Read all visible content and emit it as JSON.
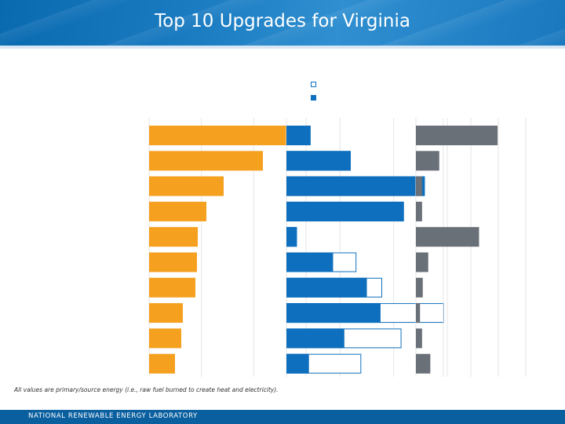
{
  "slide": {
    "title": "Top 10 Upgrades for Virginia",
    "footnote": "All values are primary/source energy (i.e., raw fuel burned to create heat and electricity).",
    "footer": "NATIONAL RENEWABLE ENERGY LABORATORY"
  },
  "colors": {
    "orange": "#f5a01f",
    "blue": "#0d6fbd",
    "gray": "#6a7078",
    "grid": "#e6e6e6",
    "header": "#1b7cc2",
    "footer": "#0a5f9f"
  },
  "chart_data": {
    "type": "bar",
    "orientation": "horizontal",
    "categories": [
      "",
      "",
      "",
      "",
      "",
      "",
      "",
      "",
      "",
      ""
    ],
    "axis_labels_visible": false,
    "grid": true,
    "panels": [
      {
        "color_key": "orange",
        "grid_lines": 3,
        "max": 200,
        "series": [
          {
            "style": "solid",
            "values": [
              178,
              145,
              95,
              73,
              62,
              61,
              59,
              43,
              41,
              33
            ]
          }
        ]
      },
      {
        "color_key": "blue",
        "grid_lines": 3,
        "max": 200,
        "series": [
          {
            "style": "solid",
            "values": [
              30,
              80,
              172,
              146,
              13,
              58,
              100,
              117,
              72,
              28
            ]
          },
          {
            "style": "hollow",
            "values": [
              30,
              80,
              172,
              146,
              13,
              87,
              119,
              196,
              143,
              93
            ]
          }
        ]
      },
      {
        "color_key": "gray",
        "grid_lines": 4,
        "max": 160,
        "series": [
          {
            "style": "solid",
            "values": [
              119,
              34,
              9,
              9,
              92,
              18,
              10,
              6,
              9,
              21
            ]
          }
        ]
      }
    ]
  }
}
